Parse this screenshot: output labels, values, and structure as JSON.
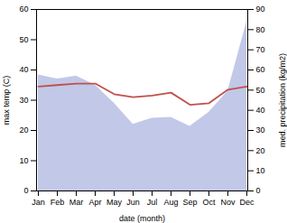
{
  "chart_data": {
    "type": "line",
    "categories": [
      "Jan",
      "Feb",
      "Mar",
      "Apr",
      "May",
      "Jun",
      "Jul",
      "Aug",
      "Sep",
      "Oct",
      "Nov",
      "Dec"
    ],
    "xlabel": "date (month)",
    "ylabel": "max temp (C)",
    "y2label": "med. precipitation (kg/m2)",
    "ylim": [
      0,
      60
    ],
    "yticks": [
      0,
      10,
      20,
      30,
      40,
      50,
      60
    ],
    "y2lim": [
      0,
      90
    ],
    "y2ticks": [
      0,
      10,
      20,
      30,
      40,
      50,
      60,
      70,
      80,
      90
    ],
    "series": [
      {
        "type": "area",
        "axis": "y2",
        "color": "#adb5e0",
        "values": [
          57.5,
          55.5,
          57.0,
          52.5,
          43.5,
          33.0,
          36.0,
          36.5,
          32.0,
          39.0,
          49.5,
          84.0
        ]
      },
      {
        "type": "line",
        "color": "#c0504d",
        "values": [
          34.5,
          35.0,
          35.5,
          35.5,
          32.0,
          31.0,
          31.5,
          32.5,
          28.5,
          29.0,
          33.5,
          34.5
        ]
      }
    ]
  }
}
